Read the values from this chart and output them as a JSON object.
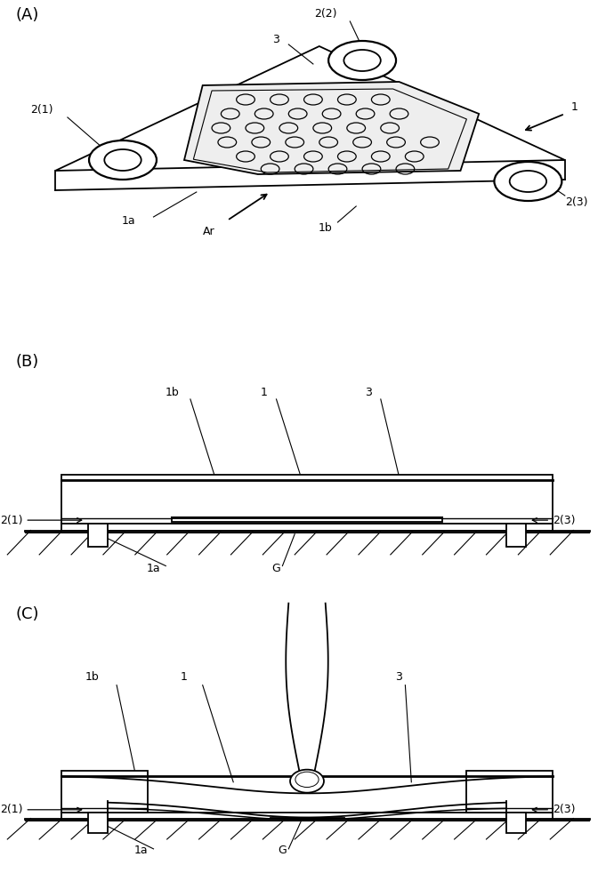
{
  "bg_color": "#ffffff",
  "line_color": "#000000",
  "panel_A_label": "(A)",
  "panel_B_label": "(B)",
  "panel_C_label": "(C)",
  "labels": {
    "A_21": "2(1)",
    "A_22": "2(2)",
    "A_23": "2(3)",
    "A_3": "3",
    "A_1": "1",
    "A_1a": "1a",
    "A_1b": "1b",
    "A_Ar": "Ar",
    "B_1b": "1b",
    "B_1": "1",
    "B_3": "3",
    "B_21": "2(1)",
    "B_23": "2(3)",
    "B_1a": "1a",
    "B_G": "G",
    "C_1b": "1b",
    "C_1": "1",
    "C_3": "3",
    "C_21": "2(1)",
    "C_23": "2(3)",
    "C_1a": "1a",
    "C_G": "G"
  }
}
